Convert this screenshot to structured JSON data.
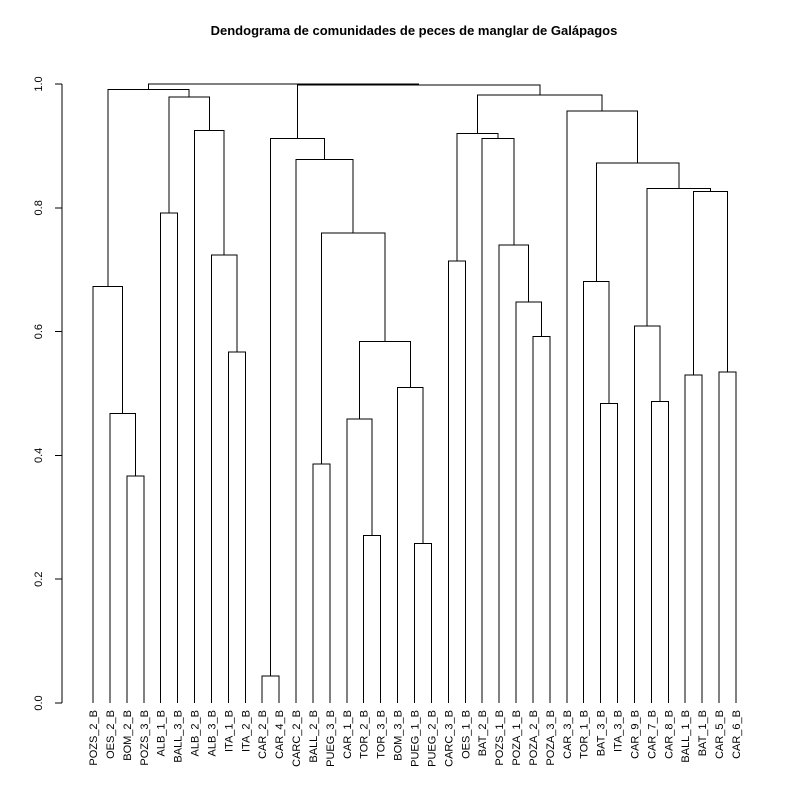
{
  "chart_data": {
    "type": "dendrogram",
    "title": "Dendograma de comunidades de peces de manglar de Galápagos",
    "xlabel": "",
    "ylabel": "",
    "ylim": [
      0,
      1
    ],
    "yticks": [
      0.0,
      0.2,
      0.4,
      0.6,
      0.8,
      1.0
    ],
    "ytick_labels": [
      "0.0",
      "0.2",
      "0.4",
      "0.6",
      "0.8",
      "1.0"
    ],
    "grid": false,
    "leaves": [
      "POZS_2_B",
      "OES_2_B",
      "BOM_2_B",
      "POZS_3_B",
      "ALB_1_B",
      "BALL_3_B",
      "ALB_2_B",
      "ALB_3_B",
      "ITA_1_B",
      "ITA_2_B",
      "CAR_2_B",
      "CAR_4_B",
      "CARC_2_B",
      "BALL_2_B",
      "PUEG_3_B",
      "CAR_1_B",
      "TOR_2_B",
      "TOR_3_B",
      "BOM_3_B",
      "PUEG_1_B",
      "PUEG_2_B",
      "CARC_3_B",
      "OES_1_B",
      "BAT_2_B",
      "POZS_1_B",
      "POZA_1_B",
      "POZA_2_B",
      "POZA_3_B",
      "CAR_3_B",
      "TOR_1_B",
      "BAT_3_B",
      "ITA_3_B",
      "CAR_9_B",
      "CAR_7_B",
      "CAR_8_B",
      "BALL_1_B",
      "BAT_1_B",
      "CAR_5_B",
      "CAR_6_B"
    ],
    "merges": [
      {
        "left": "POZS_3_B",
        "right": "BOM_2_B",
        "height": 0.367
      },
      {
        "left": "OES_2_B",
        "right": 1,
        "height": 0.468
      },
      {
        "left": "POZS_2_B",
        "right": 2,
        "height": 0.673
      },
      {
        "left": "ITA_1_B",
        "right": "ITA_2_B",
        "height": 0.567
      },
      {
        "left": "ALB_3_B",
        "right": 4,
        "height": 0.724
      },
      {
        "left": "ALB_2_B",
        "right": 5,
        "height": 0.925
      },
      {
        "left": "ALB_1_B",
        "right": "BALL_3_B",
        "height": 0.792
      },
      {
        "left": 7,
        "right": 6,
        "height": 0.979
      },
      {
        "left": 3,
        "right": 8,
        "height": 0.991
      },
      {
        "left": "CAR_2_B",
        "right": "CAR_4_B",
        "height": 0.044
      },
      {
        "left": "BALL_2_B",
        "right": "PUEG_3_B",
        "height": 0.386
      },
      {
        "left": "TOR_2_B",
        "right": "TOR_3_B",
        "height": 0.271
      },
      {
        "left": "CAR_1_B",
        "right": 12,
        "height": 0.459
      },
      {
        "left": "PUEG_1_B",
        "right": "PUEG_2_B",
        "height": 0.258
      },
      {
        "left": "BOM_3_B",
        "right": 14,
        "height": 0.51
      },
      {
        "left": 13,
        "right": 15,
        "height": 0.584
      },
      {
        "left": 11,
        "right": 16,
        "height": 0.759
      },
      {
        "left": "CARC_2_B",
        "right": 17,
        "height": 0.878
      },
      {
        "left": 10,
        "right": 18,
        "height": 0.912
      },
      {
        "left": "CARC_3_B",
        "right": "OES_1_B",
        "height": 0.714
      },
      {
        "left": "POZA_2_B",
        "right": "POZA_3_B",
        "height": 0.592
      },
      {
        "left": "POZA_1_B",
        "right": 21,
        "height": 0.648
      },
      {
        "left": "POZS_1_B",
        "right": 22,
        "height": 0.74
      },
      {
        "left": "BAT_2_B",
        "right": 23,
        "height": 0.912
      },
      {
        "left": 20,
        "right": 24,
        "height": 0.92
      },
      {
        "left": "BAT_3_B",
        "right": "ITA_3_B",
        "height": 0.484
      },
      {
        "left": "TOR_1_B",
        "right": 26,
        "height": 0.681
      },
      {
        "left": "CAR_7_B",
        "right": "CAR_8_B",
        "height": 0.487
      },
      {
        "left": "CAR_9_B",
        "right": 28,
        "height": 0.609
      },
      {
        "left": "BALL_1_B",
        "right": "BAT_1_B",
        "height": 0.53
      },
      {
        "left": "CAR_5_B",
        "right": "CAR_6_B",
        "height": 0.535
      },
      {
        "left": 30,
        "right": 31,
        "height": 0.826
      },
      {
        "left": 29,
        "right": 32,
        "height": 0.831
      },
      {
        "left": 27,
        "right": 33,
        "height": 0.872
      },
      {
        "left": "CAR_3_B",
        "right": 34,
        "height": 0.956
      },
      {
        "left": 25,
        "right": 35,
        "height": 0.982
      },
      {
        "left": 19,
        "right": 36,
        "height": 0.998
      },
      {
        "left": 9,
        "right": 37,
        "height": 1.0
      }
    ]
  }
}
